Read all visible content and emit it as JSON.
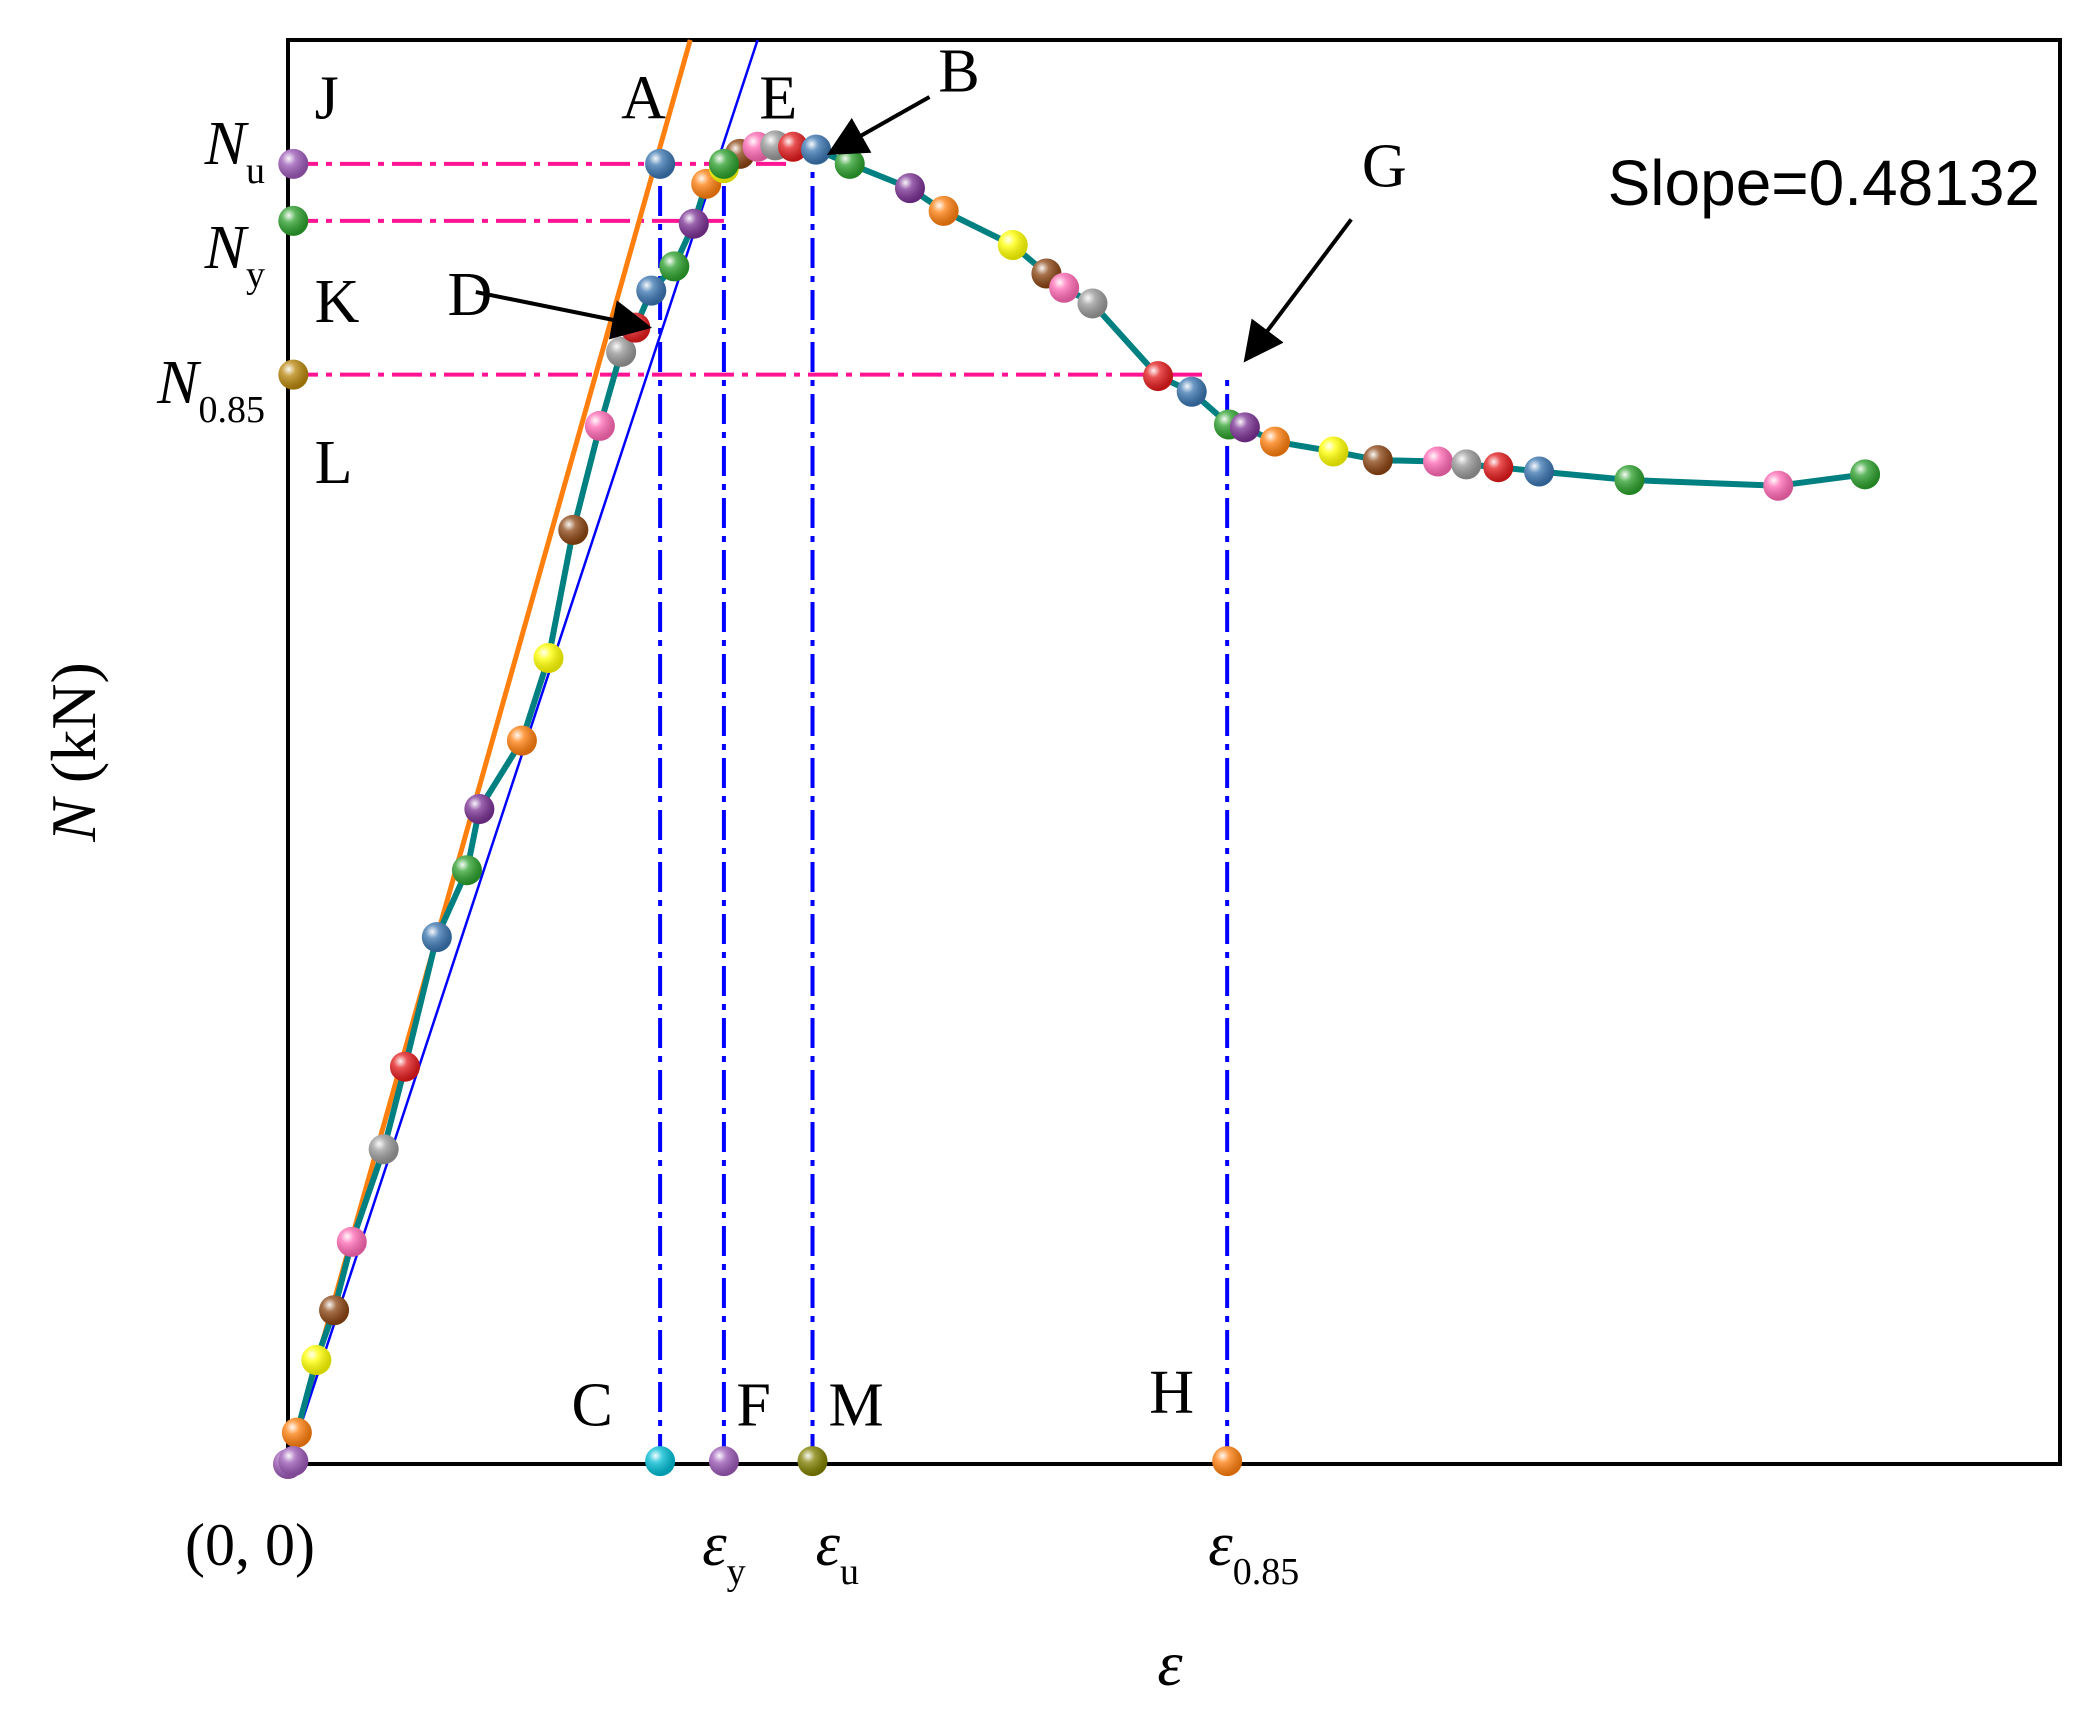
{
  "chart_data": {
    "type": "line",
    "title": "",
    "xlabel": "ε",
    "ylabel": "N (kN)",
    "origin_label": "(0, 0)",
    "slope_annotation": "Slope=0.48132",
    "xlim": [
      0,
      100
    ],
    "ylim": [
      0,
      100
    ],
    "grid": false,
    "series": [
      {
        "name": "",
        "color": "#008080",
        "x": [
          0,
          0.5,
          1.6,
          2.6,
          3.6,
          5.4,
          6.6,
          8.4,
          10.1,
          10.8,
          13.2,
          14.7,
          16.1,
          17.6,
          18.8,
          19.6,
          20.5,
          21.8,
          22.9,
          23.6,
          24.6,
          25.5,
          26.5,
          27.5,
          28.5,
          29.8,
          31.7,
          35.1,
          37.0,
          40.9,
          42.8,
          43.8,
          45.4,
          49.1,
          51.0,
          53.1,
          54.0,
          55.7,
          59.0,
          61.5,
          64.9,
          66.5,
          68.3,
          70.6,
          75.7,
          84.1,
          89.0
        ],
        "y": [
          0,
          2.2,
          7.3,
          10.8,
          15.6,
          22.1,
          27.9,
          37.0,
          41.7,
          46.0,
          50.8,
          56.6,
          65.6,
          72.9,
          78.1,
          79.8,
          82.4,
          84.1,
          87.1,
          89.9,
          91.0,
          92.0,
          92.5,
          92.6,
          92.5,
          92.3,
          91.3,
          89.6,
          88.0,
          85.6,
          83.6,
          82.6,
          81.5,
          76.4,
          75.3,
          73.0,
          72.8,
          71.8,
          71.1,
          70.5,
          70.4,
          70.2,
          70.0,
          69.7,
          69.1,
          68.7,
          69.5
        ],
        "marker_colors": [
          "#9b59b6",
          "#ff7f0e",
          "#ffff00",
          "#8b4513",
          "#ff69b4",
          "#999999",
          "#e31a1c",
          "#3a75b0",
          "#2ca02c",
          "#7b3294",
          "#ff7f0e",
          "#ffff00",
          "#8b4513",
          "#ff69b4",
          "#999999",
          "#e31a1c",
          "#3a75b0",
          "#2ca02c",
          "#7b3294",
          "#ff7f0e",
          "#ffff00",
          "#8b4513",
          "#ff69b4",
          "#999999",
          "#e31a1c",
          "#3a75b0",
          "#2ca02c",
          "#7b3294",
          "#ff7f0e",
          "#ffff00",
          "#8b4513",
          "#ff69b4",
          "#999999",
          "#e31a1c",
          "#3a75b0",
          "#2ca02c",
          "#7b3294",
          "#ff7f0e",
          "#ffff00",
          "#8b4513",
          "#ff69b4",
          "#999999",
          "#e31a1c",
          "#3a75b0",
          "#2ca02c",
          "#ff69b4",
          "#2ca02c"
        ]
      }
    ],
    "reference_lines": [
      {
        "name": "orange-tangent",
        "color": "#ff7f0e",
        "x": [
          0,
          22.7
        ],
        "y": [
          0,
          100
        ]
      },
      {
        "name": "blue-secant",
        "color": "#0000ff",
        "x": [
          0,
          26.5
        ],
        "y": [
          0,
          100
        ]
      }
    ],
    "horizontal_guides": [
      {
        "label": "Nu",
        "y": 91.3,
        "x_end": 28.5,
        "color": "#ff1493"
      },
      {
        "label": "Ny",
        "y": 87.3,
        "x_end": 24.6,
        "color": "#ff1493"
      },
      {
        "label": "N0.85",
        "y": 76.5,
        "x_end": 52.0,
        "color": "#ff1493"
      }
    ],
    "vertical_guides": [
      {
        "name": "C",
        "x": 21.0,
        "y_end": 91.3,
        "color": "#0000ff"
      },
      {
        "name": "F",
        "x": 24.6,
        "y_end": 91.3,
        "color": "#0000ff"
      },
      {
        "name": "M",
        "x": 29.6,
        "y_end": 91.3,
        "color": "#0000ff"
      },
      {
        "name": "H",
        "x": 53.0,
        "y_end": 76.5,
        "color": "#0000ff"
      }
    ],
    "y_tick_labels": [
      {
        "main": "N",
        "sub": "u",
        "y": 91.3
      },
      {
        "main": "N",
        "sub": "y",
        "y": 84.0
      },
      {
        "main": "N",
        "sub": "0.85",
        "y": 74.5
      }
    ],
    "x_tick_labels": [
      {
        "main": "ε",
        "sub": "y",
        "x": 24.6
      },
      {
        "main": "ε",
        "sub": "u",
        "x": 31.0
      },
      {
        "main": "ε",
        "sub": "0.85",
        "x": 54.5
      }
    ],
    "point_labels": [
      {
        "text": "J",
        "x": 1.5,
        "y": 94.5
      },
      {
        "text": "A",
        "x": 18.8,
        "y": 94.5
      },
      {
        "text": "E",
        "x": 26.6,
        "y": 94.5
      },
      {
        "text": "B",
        "x": 36.7,
        "y": 96.4
      },
      {
        "text": "K",
        "x": 1.5,
        "y": 80.2
      },
      {
        "text": "D",
        "x": 9.0,
        "y": 80.7
      },
      {
        "text": "L",
        "x": 1.5,
        "y": 68.9
      },
      {
        "text": "G",
        "x": 60.6,
        "y": 89.7
      },
      {
        "text": "C",
        "x": 16.0,
        "y": 2.7
      },
      {
        "text": "F",
        "x": 25.3,
        "y": 2.7
      },
      {
        "text": "M",
        "x": 30.5,
        "y": 2.7
      },
      {
        "text": "H",
        "x": 48.6,
        "y": 3.6
      }
    ],
    "guide_markers": [
      {
        "x": 0.3,
        "y": 91.3,
        "color": "#9b59b6"
      },
      {
        "x": 0.3,
        "y": 87.3,
        "color": "#2ca02c"
      },
      {
        "x": 0.3,
        "y": 76.5,
        "color": "#b8860b"
      },
      {
        "x": 21.0,
        "y": 91.3,
        "color": "#3a75b0"
      },
      {
        "x": 24.6,
        "y": 91.3,
        "color": "#2ca02c"
      },
      {
        "x": 21.0,
        "y": 0.2,
        "color": "#00bcd4"
      },
      {
        "x": 24.6,
        "y": 0.2,
        "color": "#9b59b6"
      },
      {
        "x": 29.6,
        "y": 0.2,
        "color": "#808000"
      },
      {
        "x": 53.0,
        "y": 0.2,
        "color": "#ff7f0e"
      },
      {
        "x": 0.3,
        "y": 0.2,
        "color": "#9b59b6"
      }
    ],
    "arrows": [
      {
        "label": "B",
        "from": [
          36.2,
          96.0
        ],
        "to": [
          30.8,
          92.2
        ]
      },
      {
        "label": "D",
        "from": [
          10.6,
          82.3
        ],
        "to": [
          20.1,
          79.9
        ]
      },
      {
        "label": "G",
        "from": [
          60.0,
          87.4
        ],
        "to": [
          54.2,
          77.8
        ]
      }
    ]
  }
}
